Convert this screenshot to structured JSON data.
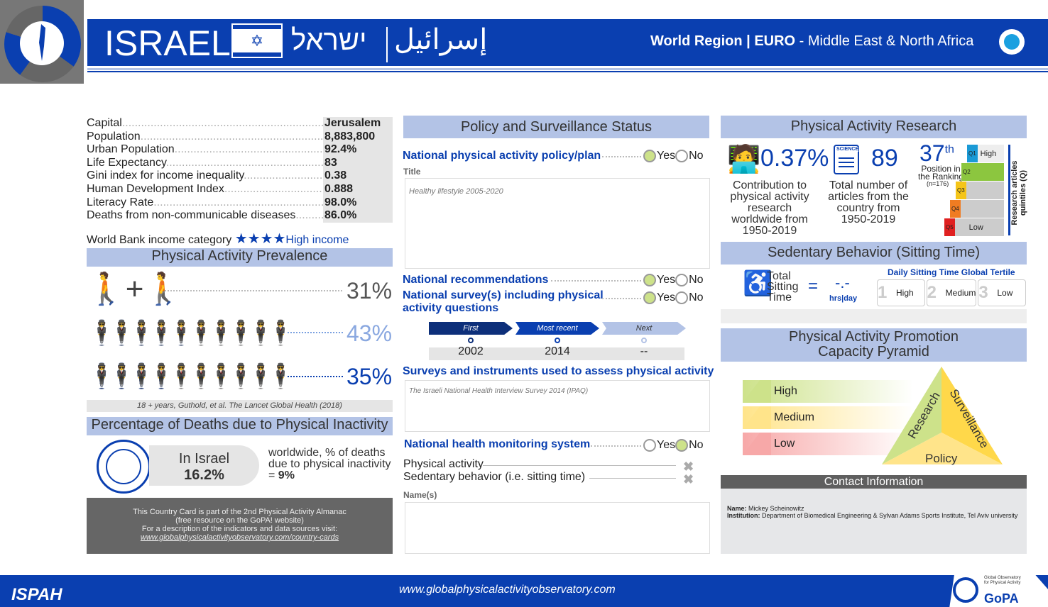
{
  "header": {
    "country": "ISRAEL",
    "hebrew": "ישראל",
    "arabic": "إسرائيل",
    "region_prefix": "World Region | ",
    "region_code": "EURO",
    "region_name": " - Middle East & North Africa"
  },
  "facts": [
    {
      "k": "Capital",
      "v": "Jerusalem"
    },
    {
      "k": "Population",
      "v": "8,883,800"
    },
    {
      "k": "Urban Population",
      "v": "92.4%"
    },
    {
      "k": "Life Expectancy",
      "v": "83"
    },
    {
      "k": "Gini index for income inequality",
      "v": "0.38"
    },
    {
      "k": "Human Development Index",
      "v": "0.888"
    },
    {
      "k": "Literacy Rate",
      "v": "98.0%"
    },
    {
      "k": "Deaths from non-communicable diseases",
      "v": "86.0%"
    }
  ],
  "income": {
    "label": "World Bank income category",
    "value": "High income",
    "stars": 4
  },
  "prevalence": {
    "title": "Physical Activity Prevalence",
    "overall": "31%",
    "men": "43%",
    "women": "35%",
    "source": "18 + years, Guthold, et al. The Lancet Global Health (2018)"
  },
  "deaths": {
    "title": "Percentage of Deaths due to Physical Inactivity",
    "in_label": "In Israel",
    "in_value": "16.2%",
    "world_text": "worldwide, % of deaths due to physical inactivity = ",
    "world_value": "9%"
  },
  "almanac": {
    "line1": "This Country Card is part of the 2nd Physical Activity Almanac",
    "line2": "(free resource on the GoPA! website)",
    "line3": "For a description of the indicators and data sources visit:",
    "link": "www.globalphysicalactivityobservatory.com/country-cards"
  },
  "policy": {
    "title": "Policy and Surveillance Status",
    "plan_label": "National physical activity policy/plan",
    "plan": "Yes",
    "title_label": "Title",
    "title_value": "Healthy lifestyle 2005-2020",
    "rec_label": "National recommendations",
    "rec": "Yes",
    "survey_label": "National survey(s) including physical activity questions",
    "survey": "Yes",
    "yes": "Yes",
    "no": "No",
    "timeline": [
      {
        "label": "First",
        "year": "2002"
      },
      {
        "label": "Most recent",
        "year": "2014"
      },
      {
        "label": "Next",
        "year": "--"
      }
    ],
    "instruments_label": "Surveys and instruments used to assess physical activity",
    "instruments_value": "The Israeli National Health Interview Survey 2014 (IPAQ)",
    "monitor_label": "National health monitoring system",
    "monitor": "No",
    "monitor_items": [
      "Physical activity",
      "Sedentary behavior (i.e. sitting time)"
    ],
    "names_label": "Name(s)"
  },
  "research": {
    "title": "Physical Activity Research",
    "contribution": "0.37%",
    "contribution_label": "Contribution to physical activity research worldwide from 1950-2019",
    "articles": "89",
    "articles_label": "Total number of articles from the country from 1950-2019",
    "science": "SCIENCE",
    "rank": "37",
    "rank_suffix": "th",
    "rank_label": "Position in the Ranking",
    "rank_n": "(n=176)",
    "quintiles": [
      "Q1",
      "Q2",
      "Q3",
      "Q4",
      "Q5"
    ],
    "high": "High",
    "low": "Low",
    "current_quintile": "Q2",
    "axis_label": "Research articles quintiles (Q)"
  },
  "sedentary": {
    "title": "Sedentary Behavior (Sitting Time)",
    "label": "Total Sitting Time",
    "value": "-.-",
    "unit": "hrs|day",
    "tertile_title": "Daily Sitting Time Global Tertile",
    "tertiles": [
      {
        "n": "1",
        "l": "High"
      },
      {
        "n": "2",
        "l": "Medium"
      },
      {
        "n": "3",
        "l": "Low"
      }
    ]
  },
  "pyramid": {
    "title1": "Physical Activity Promotion",
    "title2": "Capacity Pyramid",
    "levels": [
      "High",
      "Medium",
      "Low"
    ],
    "research": "Research",
    "surveillance": "Surveillance",
    "policy": "Policy"
  },
  "contact": {
    "title": "Contact Information",
    "name_label": "Name:",
    "name": " Mickey Scheinowitz",
    "inst_label": "Institution:",
    "inst": " Department of Biomedical Engineering & Sylvan Adams Sports Institute, Tel Aviv university"
  },
  "footer": {
    "ispah": "ISPAH",
    "url": "www.globalphysicalactivityobservatory.com",
    "gopa": "GoPA",
    "gopa_small": "Global Observatory for Physical Activity"
  },
  "colors": {
    "brand": "#0a3fb0",
    "section": "#b3c3e6",
    "yes": "#cde28a",
    "q1": "#1a9ad6",
    "q2": "#8cc63f",
    "q3": "#f5c518",
    "q4": "#f07c22",
    "q5": "#e02020"
  }
}
